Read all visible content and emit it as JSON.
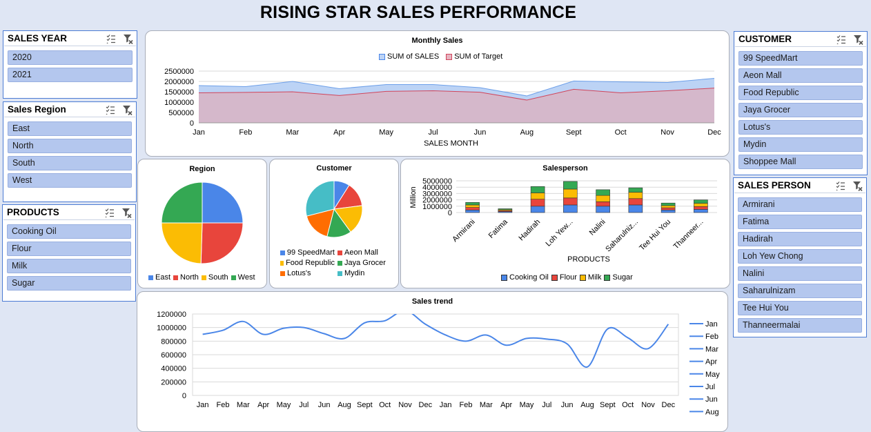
{
  "title": "RISING STAR SALES PERFORMANCE",
  "slicers": {
    "sales_year": {
      "title": "SALES YEAR",
      "items": [
        "2020",
        "2021"
      ]
    },
    "sales_region": {
      "title": "Sales Region",
      "items": [
        "East",
        "North",
        "South",
        "West"
      ]
    },
    "products": {
      "title": "PRODUCTS",
      "items": [
        "Cooking Oil",
        "Flour",
        "Milk",
        "Sugar"
      ]
    },
    "customer": {
      "title": "CUSTOMER",
      "items": [
        "99 SpeedMart",
        "Aeon Mall",
        "Food Republic",
        "Jaya Grocer",
        "Lotus's",
        "Mydin",
        "Shoppee Mall"
      ]
    },
    "sales_person": {
      "title": "SALES PERSON",
      "items": [
        "Armirani",
        "Fatima",
        "Hadirah",
        "Loh Yew Chong",
        "Nalini",
        "Saharulnizam",
        "Tee Hui You",
        "Thanneermalai"
      ]
    }
  },
  "icons": {
    "multi_select": "multi-select-icon",
    "clear_filter": "clear-filter-icon"
  },
  "colors": {
    "blue": "#4a86e8",
    "red": "#e8453c",
    "yellow": "#fbbc04",
    "green": "#34a853",
    "orange": "#ff6d01",
    "teal": "#46bdc6",
    "line": "#4a86e8",
    "sales_area": "#bcd3f5",
    "target_area": "#d9b3c3"
  },
  "chart_data": [
    {
      "type": "area",
      "title": "Monthly Sales",
      "xlabel": "SALES MONTH",
      "ylabel": "",
      "categories": [
        "Jan",
        "Feb",
        "Mar",
        "Apr",
        "May",
        "Jul",
        "Jun",
        "Aug",
        "Sept",
        "Oct",
        "Nov",
        "Dec"
      ],
      "ylim": [
        0,
        2500000
      ],
      "yticks": [
        "2500000",
        "2000000",
        "1500000",
        "1000000",
        "500000",
        "0"
      ],
      "series": [
        {
          "name": "SUM of SALES",
          "values": [
            1800000,
            1750000,
            2000000,
            1650000,
            1850000,
            1850000,
            1700000,
            1300000,
            2020000,
            1980000,
            1950000,
            2150000
          ]
        },
        {
          "name": "SUM of Target",
          "values": [
            1450000,
            1470000,
            1500000,
            1320000,
            1520000,
            1550000,
            1480000,
            1100000,
            1620000,
            1450000,
            1550000,
            1680000
          ]
        }
      ]
    },
    {
      "type": "pie",
      "title": "Region",
      "categories": [
        "East",
        "North",
        "South",
        "West"
      ],
      "values": [
        25,
        25.5,
        24.5,
        25
      ]
    },
    {
      "type": "pie",
      "title": "Customer",
      "categories": [
        "99 SpeedMart",
        "Aeon Mall",
        "Food Republic",
        "Jaya Grocer",
        "Lotus's",
        "Mydin"
      ],
      "values": [
        9,
        14,
        17,
        14,
        17,
        29
      ]
    },
    {
      "type": "bar",
      "stacked": true,
      "title": "Salesperson",
      "xlabel": "PRODUCTS",
      "ylabel": "Million",
      "categories": [
        "Armirani",
        "Fatima",
        "Hadirah",
        "Loh Yew...",
        "Nalini",
        "Saharulniz...",
        "Tee Hui You",
        "Thanneer..."
      ],
      "ylim": [
        0,
        5000000
      ],
      "yticks": [
        "5000000",
        "4000000",
        "3000000",
        "2000000",
        "1000000",
        "0"
      ],
      "series": [
        {
          "name": "Cooking Oil",
          "values": [
            400000,
            150000,
            1000000,
            1200000,
            1000000,
            1200000,
            400000,
            500000
          ]
        },
        {
          "name": "Flour",
          "values": [
            400000,
            150000,
            1100000,
            1100000,
            700000,
            1000000,
            350000,
            450000
          ]
        },
        {
          "name": "Milk",
          "values": [
            400000,
            150000,
            1000000,
            1400000,
            1000000,
            1000000,
            350000,
            500000
          ]
        },
        {
          "name": "Sugar",
          "values": [
            400000,
            150000,
            1000000,
            1200000,
            900000,
            700000,
            400000,
            550000
          ]
        }
      ]
    },
    {
      "type": "line",
      "title": "Sales trend",
      "categories": [
        "Jan",
        "Feb",
        "Mar",
        "Apr",
        "May",
        "Jul",
        "Jun",
        "Aug",
        "Sept",
        "Oct",
        "Nov",
        "Dec",
        "Jan",
        "Feb",
        "Mar",
        "Apr",
        "May",
        "Jul",
        "Jun",
        "Aug",
        "Sept",
        "Oct",
        "Nov",
        "Dec"
      ],
      "ylim": [
        0,
        1200000
      ],
      "yticks": [
        "1200000",
        "1000000",
        "800000",
        "600000",
        "400000",
        "200000",
        "0"
      ],
      "values": [
        900000,
        960000,
        1090000,
        900000,
        990000,
        1000000,
        910000,
        840000,
        1070000,
        1100000,
        1250000,
        1050000,
        890000,
        800000,
        890000,
        740000,
        840000,
        830000,
        760000,
        420000,
        980000,
        850000,
        690000,
        1050000
      ],
      "legend": [
        "Jan",
        "Feb",
        "Mar",
        "Apr",
        "May",
        "Jul",
        "Jun",
        "Aug"
      ]
    }
  ]
}
